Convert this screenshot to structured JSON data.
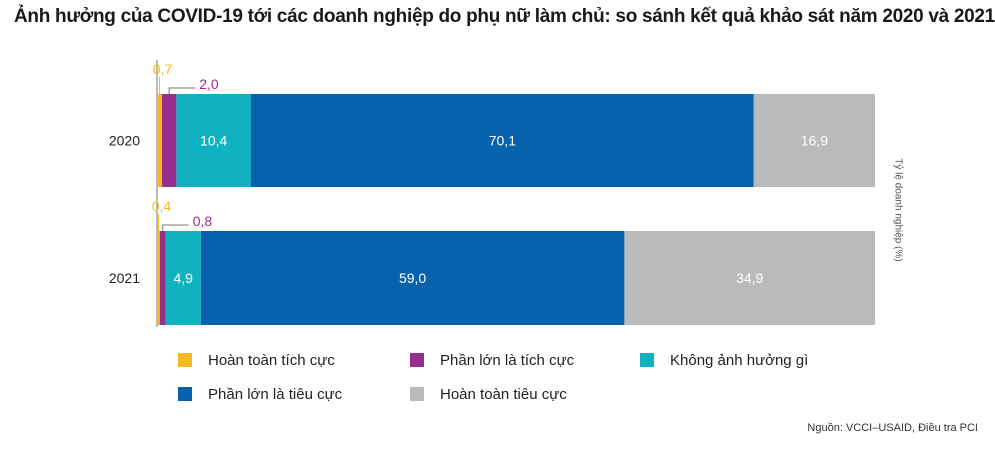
{
  "chart_data": {
    "type": "bar",
    "orientation": "horizontal",
    "stacked": true,
    "title": "Ảnh hưởng của COVID-19 tới các doanh nghiệp do phụ nữ làm chủ: so sánh kết quả khảo sát năm 2020 và 2021",
    "xlabel": "",
    "ylabel": "Tỷ lệ doanh nghiệp (%)",
    "categories": [
      "2020",
      "2021"
    ],
    "series": [
      {
        "name": "Hoàn toàn tích cực",
        "values": [
          0.7,
          0.4
        ],
        "labels": [
          "0,7",
          "0,4"
        ],
        "color": "#f5b923"
      },
      {
        "name": "Phần lớn là tích cực",
        "values": [
          2.0,
          0.8
        ],
        "labels": [
          "2,0",
          "0,8"
        ],
        "color": "#962f8c"
      },
      {
        "name": "Không ảnh hưởng gì",
        "values": [
          10.4,
          4.9
        ],
        "labels": [
          "10,4",
          "4,9"
        ],
        "color": "#10b2c2"
      },
      {
        "name": "Phần lớn là tiêu cực",
        "values": [
          70.1,
          59.0
        ],
        "labels": [
          "70,1",
          "59,0"
        ],
        "color": "#0762ad"
      },
      {
        "name": "Hoàn toàn tiêu cực",
        "values": [
          16.9,
          34.9
        ],
        "labels": [
          "16,9",
          "34,9"
        ],
        "color": "#b9babc"
      }
    ],
    "xlim": [
      0,
      100
    ],
    "grid": false,
    "legend_position": "bottom"
  },
  "source": "Nguồn: VCCI–USAID, Điều tra PCI"
}
